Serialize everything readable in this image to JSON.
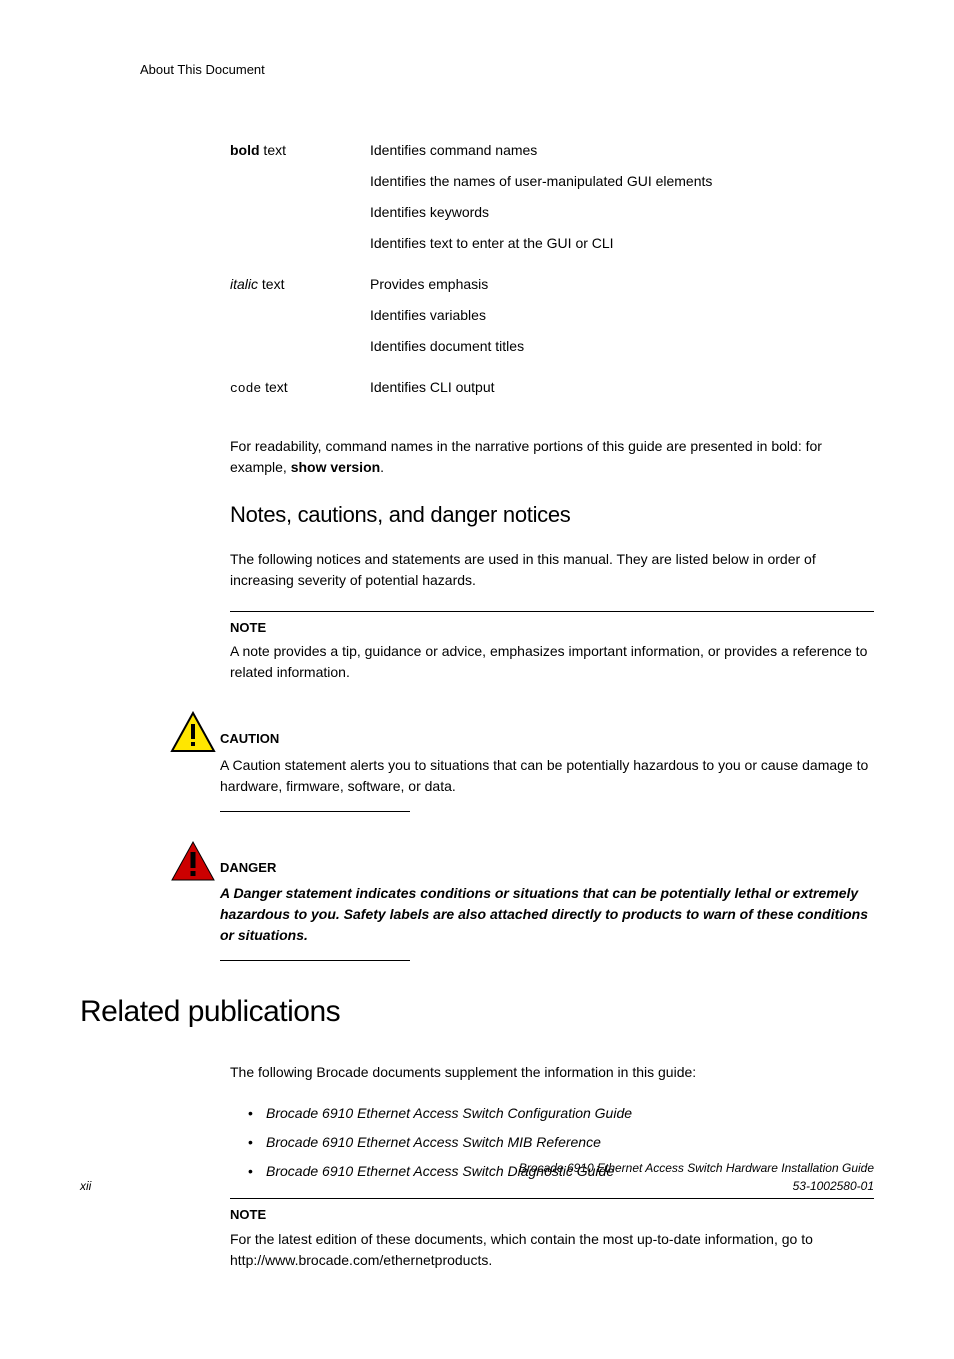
{
  "header": {
    "title": "About This Document"
  },
  "conventions": {
    "rows": [
      {
        "label_html": "<span class='bold'>bold</span> text",
        "descs": [
          "Identifies command names",
          "Identifies the names of user-manipulated GUI elements",
          "Identifies keywords",
          "Identifies text to enter at the GUI or CLI"
        ]
      },
      {
        "label_html": "<span class='italic'>italic</span> text",
        "descs": [
          "Provides emphasis",
          "Identifies variables",
          "Identifies document titles"
        ]
      },
      {
        "label_html": "<span class='code'>code</span> text",
        "descs": [
          "Identifies CLI output"
        ]
      }
    ]
  },
  "readability_para_pre": "For readability, command names in the narrative portions of this guide are presented in bold: for example, ",
  "readability_cmd": "show version",
  "readability_para_post": ".",
  "notices": {
    "heading": "Notes, cautions, and danger notices",
    "intro": "The following notices and statements are used in this manual. They are listed below in order of increasing severity of potential hazards.",
    "note": {
      "head": "NOTE",
      "body": "A note provides a tip, guidance or advice, emphasizes important information, or provides a reference to related information."
    },
    "caution": {
      "head": "CAUTION",
      "body": "A Caution statement alerts you to situations that can be potentially hazardous to you or cause damage to hardware, firmware, software, or data.",
      "icon_stroke": "#000000",
      "icon_fill": "#ffe600",
      "icon_bang": "#000000"
    },
    "danger": {
      "head": "DANGER",
      "body": "A Danger statement indicates conditions or situations that can be potentially lethal or extremely hazardous to you. Safety labels are also attached directly to products to warn of these conditions or situations.",
      "icon_stroke": "#000000",
      "icon_fill": "#cc0000",
      "icon_bang": "#000000"
    }
  },
  "related": {
    "heading": "Related publications",
    "intro": "The following Brocade documents supplement the information in this guide:",
    "items": [
      "Brocade 6910 Ethernet Access Switch Configuration Guide",
      "Brocade 6910 Ethernet Access Switch MIB Reference",
      "Brocade 6910 Ethernet Access Switch Diagnostic Guide"
    ],
    "note": {
      "head": "NOTE",
      "body": "For the latest edition of these documents, which contain the most up-to-date information, go to http://www.brocade.com/ethernetproducts."
    }
  },
  "footer": {
    "page": "xii",
    "title": "Brocade 6910 Ethernet Access Switch Hardware Installation Guide",
    "docnum": "53-1002580-01"
  }
}
